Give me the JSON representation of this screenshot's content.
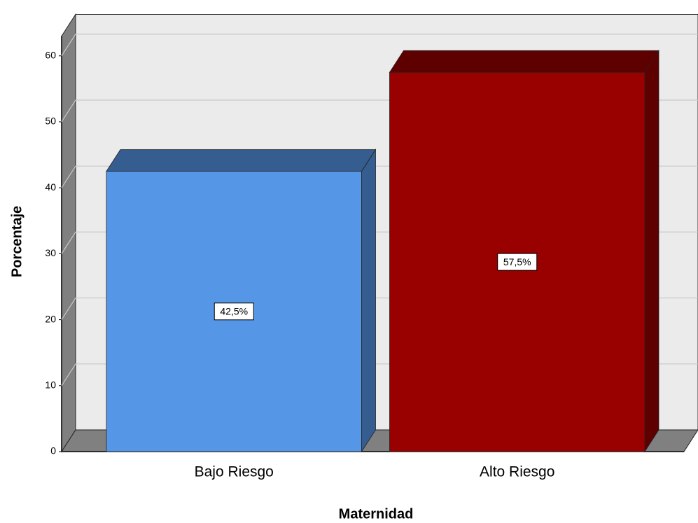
{
  "chart_data": {
    "type": "bar3d",
    "categories": [
      "Bajo Riesgo",
      "Alto Riesgo"
    ],
    "values": [
      42.5,
      57.5
    ],
    "value_labels": [
      "42,5%",
      "57,5%"
    ],
    "colors": [
      "#5596e6",
      "#990000"
    ],
    "ylim": [
      0,
      63
    ],
    "yticks": [
      0,
      10,
      20,
      30,
      40,
      50,
      60
    ],
    "grid": true,
    "y_label": "Porcentaje",
    "x_label": "Maternidad"
  }
}
